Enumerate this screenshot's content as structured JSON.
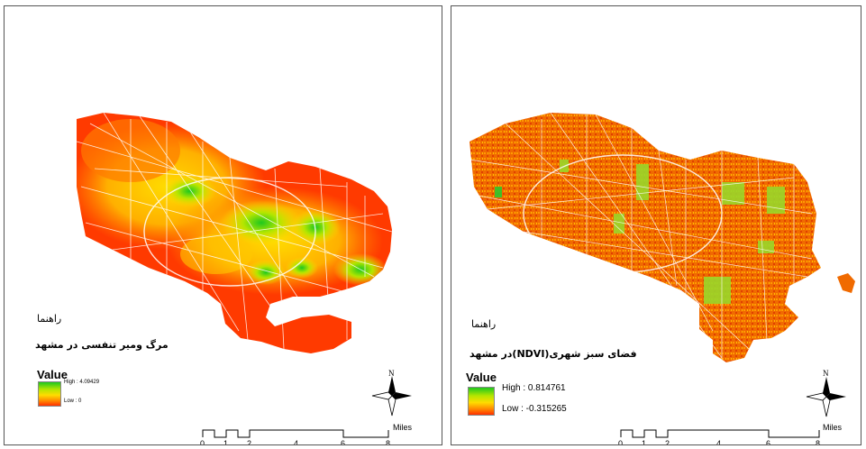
{
  "left_map": {
    "guide_label": "راهنما",
    "map_title": "مرگ ومیر تنفسی در مشهد",
    "legend_title": "Value",
    "legend_high": "High : 4.09429",
    "legend_low": "Low : 0",
    "north_letter": "N",
    "scale_ticks": [
      "0",
      "1",
      "2",
      "4",
      "6",
      "8"
    ],
    "scale_unit": "Miles"
  },
  "right_map": {
    "guide_label": "راهنما",
    "map_title": "فضای سبز شهری(NDVI)در مشهد",
    "legend_title": "Value",
    "legend_high": "High : 0.814761",
    "legend_low": "Low : -0.315265",
    "north_letter": "N",
    "scale_ticks": [
      "0",
      "1",
      "2",
      "4",
      "6",
      "8"
    ],
    "scale_unit": "Miles"
  },
  "colors": {
    "high": "#1ec81e",
    "mid": "#ffdc00",
    "low": "#ff3000",
    "roads": "#ffffff",
    "frame": "#555555"
  }
}
